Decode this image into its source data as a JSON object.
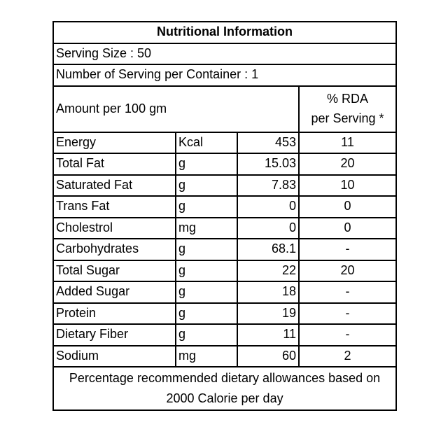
{
  "label": {
    "title": "Nutritional Information",
    "serving_size": "Serving Size : 50",
    "servings_per_container": "Number of Serving per Container : 1",
    "amount_per": "Amount per 100 gm",
    "rda_header_line1": "% RDA",
    "rda_header_line2": "per Serving *",
    "rows": [
      {
        "nutrient": "Energy",
        "unit": "Kcal",
        "value": "453",
        "rda": "11"
      },
      {
        "nutrient": "Total Fat",
        "unit": "g",
        "value": "15.03",
        "rda": "20"
      },
      {
        "nutrient": "Saturated Fat",
        "unit": "g",
        "value": "7.83",
        "rda": "10"
      },
      {
        "nutrient": "Trans Fat",
        "unit": "g",
        "value": "0",
        "rda": "0"
      },
      {
        "nutrient": "Cholestrol",
        "unit": "mg",
        "value": "0",
        "rda": "0"
      },
      {
        "nutrient": "Carbohydrates",
        "unit": "g",
        "value": "68.1",
        "rda": "-"
      },
      {
        "nutrient": "Total Sugar",
        "unit": "g",
        "value": "22",
        "rda": "20"
      },
      {
        "nutrient": "Added Sugar",
        "unit": "g",
        "value": "18",
        "rda": "-"
      },
      {
        "nutrient": "Protein",
        "unit": "g",
        "value": "19",
        "rda": "-"
      },
      {
        "nutrient": "Dietary Fiber",
        "unit": "g",
        "value": "11",
        "rda": "-"
      },
      {
        "nutrient": "Sodium",
        "unit": "mg",
        "value": "60",
        "rda": "2"
      }
    ],
    "footnote_line1": "Percentage recommended dietary allowances based on",
    "footnote_line2": "2000 Calorie per day"
  }
}
